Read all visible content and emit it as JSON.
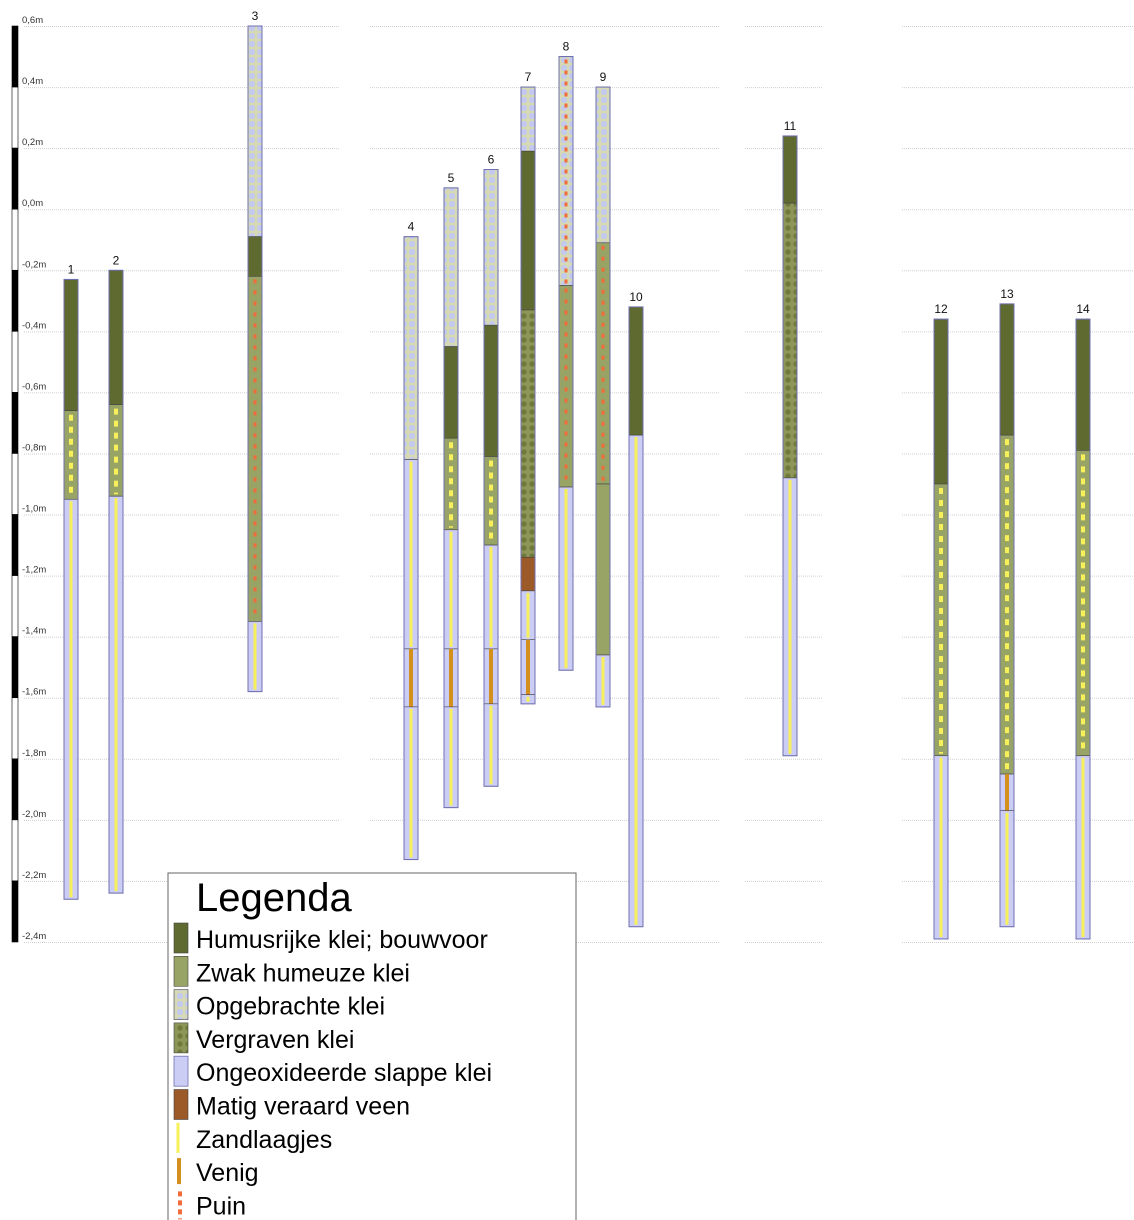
{
  "chart_data": {
    "type": "diagram",
    "depth_axis": {
      "unit": "m",
      "min": -2.4,
      "max": 0.6,
      "step": 0.2,
      "tick_labels": [
        "0,6m",
        "0,4m",
        "0,2m",
        "0,0m",
        "-0,2m",
        "-0,4m",
        "-0,6m",
        "-0,8m",
        "-1,0m",
        "-1,2m",
        "-1,4m",
        "-1,6m",
        "-1,8m",
        "-2,0m",
        "-2,2m",
        "-2,4m"
      ]
    },
    "cores": [
      {
        "label": "1",
        "layers": [
          {
            "type": "humus",
            "top": -0.23,
            "bottom": -0.66
          },
          {
            "type": "zwak_zand",
            "top": -0.66,
            "bottom": -0.95
          },
          {
            "type": "slap_zand",
            "top": -0.95,
            "bottom": -2.26
          }
        ]
      },
      {
        "label": "2",
        "layers": [
          {
            "type": "humus",
            "top": -0.2,
            "bottom": -0.64
          },
          {
            "type": "zwak_zand",
            "top": -0.64,
            "bottom": -0.94
          },
          {
            "type": "slap_zand",
            "top": -0.94,
            "bottom": -2.24
          }
        ]
      },
      {
        "label": "3",
        "layers": [
          {
            "type": "opgebracht",
            "top": 0.6,
            "bottom": -0.09
          },
          {
            "type": "humus",
            "top": -0.09,
            "bottom": -0.22
          },
          {
            "type": "zwak_puin",
            "top": -0.22,
            "bottom": -1.35
          },
          {
            "type": "slap_zand",
            "top": -1.35,
            "bottom": -1.58
          }
        ]
      },
      {
        "label": "4",
        "layers": [
          {
            "type": "opgebracht",
            "top": -0.09,
            "bottom": -0.82
          },
          {
            "type": "slap_zand",
            "top": -0.82,
            "bottom": -1.44
          },
          {
            "type": "slap_venig",
            "top": -1.44,
            "bottom": -1.63
          },
          {
            "type": "slap_zand",
            "top": -1.63,
            "bottom": -2.13
          }
        ]
      },
      {
        "label": "5",
        "layers": [
          {
            "type": "opgebracht",
            "top": 0.07,
            "bottom": -0.45
          },
          {
            "type": "humus",
            "top": -0.45,
            "bottom": -0.75
          },
          {
            "type": "zwak_zand",
            "top": -0.75,
            "bottom": -1.05
          },
          {
            "type": "slap_zand",
            "top": -1.05,
            "bottom": -1.44
          },
          {
            "type": "slap_venig",
            "top": -1.44,
            "bottom": -1.63
          },
          {
            "type": "slap_zand",
            "top": -1.63,
            "bottom": -1.96
          }
        ]
      },
      {
        "label": "6",
        "layers": [
          {
            "type": "opgebracht",
            "top": 0.13,
            "bottom": -0.38
          },
          {
            "type": "humus",
            "top": -0.38,
            "bottom": -0.81
          },
          {
            "type": "zwak_zand",
            "top": -0.81,
            "bottom": -1.1
          },
          {
            "type": "slap_zand",
            "top": -1.1,
            "bottom": -1.44
          },
          {
            "type": "slap_venig",
            "top": -1.44,
            "bottom": -1.62
          },
          {
            "type": "slap_zand",
            "top": -1.62,
            "bottom": -1.89
          }
        ]
      },
      {
        "label": "7",
        "layers": [
          {
            "type": "opgebracht",
            "top": 0.4,
            "bottom": 0.19
          },
          {
            "type": "humus",
            "top": 0.19,
            "bottom": -0.33
          },
          {
            "type": "vergraven",
            "top": -0.33,
            "bottom": -1.14
          },
          {
            "type": "veen",
            "top": -1.14,
            "bottom": -1.25
          },
          {
            "type": "slap_zand",
            "top": -1.25,
            "bottom": -1.41
          },
          {
            "type": "slap_venig",
            "top": -1.41,
            "bottom": -1.59
          },
          {
            "type": "slap_zand",
            "top": -1.59,
            "bottom": -1.62
          }
        ]
      },
      {
        "label": "8",
        "layers": [
          {
            "type": "opgebracht_puin",
            "top": 0.5,
            "bottom": -0.25
          },
          {
            "type": "zwak_puin",
            "top": -0.25,
            "bottom": -0.91
          },
          {
            "type": "slap_zand",
            "top": -0.91,
            "bottom": -1.51
          }
        ]
      },
      {
        "label": "9",
        "layers": [
          {
            "type": "opgebracht",
            "top": 0.4,
            "bottom": -0.11
          },
          {
            "type": "zwak_puin",
            "top": -0.11,
            "bottom": -0.9
          },
          {
            "type": "zwak",
            "top": -0.9,
            "bottom": -1.46
          },
          {
            "type": "slap_zand",
            "top": -1.46,
            "bottom": -1.63
          }
        ]
      },
      {
        "label": "10",
        "layers": [
          {
            "type": "humus",
            "top": -0.32,
            "bottom": -0.74
          },
          {
            "type": "slap_zand",
            "top": -0.74,
            "bottom": -2.35
          }
        ]
      },
      {
        "label": "11",
        "layers": [
          {
            "type": "humus",
            "top": 0.24,
            "bottom": 0.02
          },
          {
            "type": "vergraven",
            "top": 0.02,
            "bottom": -0.88
          },
          {
            "type": "slap_zand",
            "top": -0.88,
            "bottom": -1.79
          }
        ]
      },
      {
        "label": "12",
        "layers": [
          {
            "type": "humus",
            "top": -0.36,
            "bottom": -0.9
          },
          {
            "type": "zwak_zand",
            "top": -0.9,
            "bottom": -1.79
          },
          {
            "type": "slap_zand",
            "top": -1.79,
            "bottom": -2.39
          }
        ]
      },
      {
        "label": "13",
        "layers": [
          {
            "type": "humus",
            "top": -0.31,
            "bottom": -0.74
          },
          {
            "type": "zwak_zand",
            "top": -0.74,
            "bottom": -1.85
          },
          {
            "type": "slap_venig",
            "top": -1.85,
            "bottom": -1.97
          },
          {
            "type": "slap_zand",
            "top": -1.97,
            "bottom": -2.35
          }
        ]
      },
      {
        "label": "14",
        "layers": [
          {
            "type": "humus",
            "top": -0.36,
            "bottom": -0.79
          },
          {
            "type": "zwak_zand",
            "top": -0.79,
            "bottom": -1.79
          },
          {
            "type": "slap_zand",
            "top": -1.79,
            "bottom": -2.39
          }
        ]
      }
    ]
  },
  "legend": {
    "title": "Legenda",
    "items": [
      {
        "label": "Humusrijke klei; bouwvoor",
        "swatch": "humus"
      },
      {
        "label": "Zwak humeuze klei",
        "swatch": "zwak"
      },
      {
        "label": "Opgebrachte klei",
        "swatch": "opgebracht"
      },
      {
        "label": "Vergraven klei",
        "swatch": "vergraven"
      },
      {
        "label": "Ongeoxideerde slappe klei",
        "swatch": "slap"
      },
      {
        "label": "Matig veraard veen",
        "swatch": "veen"
      },
      {
        "label": "Zandlaagjes",
        "swatch": "zand"
      },
      {
        "label": "Venig",
        "swatch": "venig"
      },
      {
        "label": "Puin",
        "swatch": "puin"
      }
    ]
  },
  "colors": {
    "humus": "#5f6a30",
    "zwak": "#98a366",
    "opgebracht_bg": "#d5d9b6",
    "opgebracht_dot": "#c2c8ee",
    "vergraven_bg": "#8d9658",
    "vergraven_dot": "#6f7a3a",
    "slap": "#cccdf4",
    "veen": "#9c5a28",
    "zand": "#f7f05a",
    "venig": "#d4901c",
    "puin": "#f26b3a",
    "outline": "#6f6fb2"
  }
}
